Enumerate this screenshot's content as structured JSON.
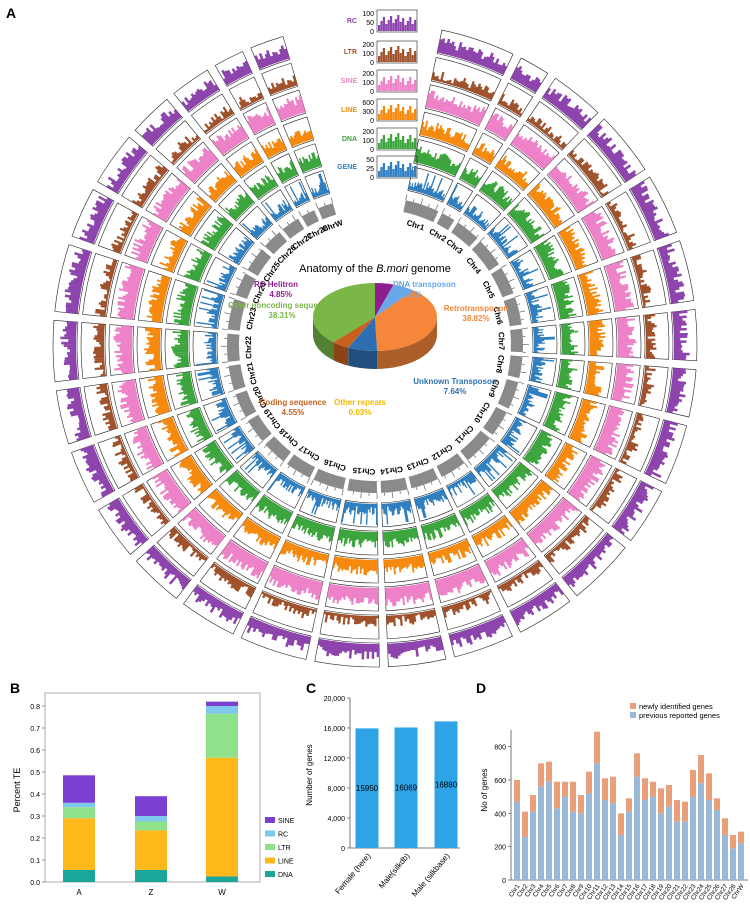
{
  "panel_labels": {
    "a": "A",
    "b": "B",
    "c": "C",
    "d": "D"
  },
  "colors": {
    "RC": "#8e44ad",
    "LTR": "#a0522d",
    "SINE": "#ee82c8",
    "LINE": "#f58a0e",
    "DNA": "#3da53d",
    "GENE": "#2f7fc1",
    "chromosome": "#8a8a8a",
    "b_SINE": "#7b3fd1",
    "b_RC": "#7ec8ee",
    "b_LTR": "#8fe28a",
    "b_LINE": "#ffb81a",
    "b_DNA": "#1aa79a",
    "c_bar": "#2ea3e6",
    "d_new": "#e8a07a",
    "d_prev": "#9ab8d8"
  },
  "ring_legend": [
    {
      "name": "RC",
      "ticks": [
        "100",
        "50",
        "0"
      ]
    },
    {
      "name": "LTR",
      "ticks": [
        "200",
        "100",
        "0"
      ]
    },
    {
      "name": "SINE",
      "ticks": [
        "200",
        "100",
        "0"
      ]
    },
    {
      "name": "LINE",
      "ticks": [
        "600",
        "300",
        "0"
      ]
    },
    {
      "name": "DNA",
      "ticks": [
        "200",
        "100",
        "0"
      ]
    },
    {
      "name": "GENE",
      "ticks": [
        "50",
        "25",
        "0"
      ]
    }
  ],
  "chart_data": [
    {
      "type": "pie",
      "panel": "A",
      "title_prefix": "Anatomy of the ",
      "title_italic": "B.mori",
      "title_suffix": " genome",
      "slices": [
        {
          "label": "RC Helitron",
          "value": 4.85,
          "pct_label": "4.85%",
          "color": "#8e1c8e"
        },
        {
          "label": "DNA transposon",
          "value": 5.8,
          "pct_label": "5.80%",
          "color": "#69a8e8"
        },
        {
          "label": "Retrotransposon",
          "value": 38.82,
          "pct_label": "38.82%",
          "color": "#f5863a"
        },
        {
          "label": "Unknown Transposon",
          "value": 7.64,
          "pct_label": "7.64%",
          "color": "#2e6fb3"
        },
        {
          "label": "Other repeats",
          "value": 0.03,
          "pct_label": "0.03%",
          "color": "#f2c200"
        },
        {
          "label": "Coding sequence",
          "value": 4.55,
          "pct_label": "4.55%",
          "color": "#c8601e"
        },
        {
          "label": "Other noncoding sequences",
          "value": 38.31,
          "pct_label": "38.31%",
          "color": "#7ab648"
        }
      ],
      "chromosomes": [
        {
          "name": "Chr1",
          "len": 22
        },
        {
          "name": "Chr2",
          "len": 9
        },
        {
          "name": "Chr3",
          "len": 16
        },
        {
          "name": "Chr4",
          "len": 19
        },
        {
          "name": "Chr5",
          "len": 18
        },
        {
          "name": "Chr6",
          "len": 18
        },
        {
          "name": "Chr7",
          "len": 15
        },
        {
          "name": "Chr8",
          "len": 14
        },
        {
          "name": "Chr9",
          "len": 18
        },
        {
          "name": "Chr10",
          "len": 17
        },
        {
          "name": "Chr11",
          "len": 20
        },
        {
          "name": "Chr12",
          "len": 17
        },
        {
          "name": "Chr13",
          "len": 18
        },
        {
          "name": "Chr14",
          "len": 17
        },
        {
          "name": "Chr15",
          "len": 19
        },
        {
          "name": "Chr16",
          "len": 20
        },
        {
          "name": "Chr17",
          "len": 17
        },
        {
          "name": "Chr18",
          "len": 16
        },
        {
          "name": "Chr19",
          "len": 16
        },
        {
          "name": "Chr20",
          "len": 16
        },
        {
          "name": "Chr21",
          "len": 16
        },
        {
          "name": "Chr22",
          "len": 18
        },
        {
          "name": "Chr23",
          "len": 20
        },
        {
          "name": "Chr24",
          "len": 15
        },
        {
          "name": "Chr25",
          "len": 16
        },
        {
          "name": "Chr26",
          "len": 13
        },
        {
          "name": "Chr27",
          "len": 12
        },
        {
          "name": "Chr28",
          "len": 9
        },
        {
          "name": "ChrW",
          "len": 10
        }
      ]
    },
    {
      "type": "bar",
      "stacked": true,
      "panel": "B",
      "categories": [
        "A",
        "Z",
        "W"
      ],
      "series": [
        {
          "name": "DNA",
          "values": [
            0.055,
            0.055,
            0.025
          ]
        },
        {
          "name": "LINE",
          "values": [
            0.235,
            0.18,
            0.54
          ]
        },
        {
          "name": "LTR",
          "values": [
            0.05,
            0.04,
            0.2
          ]
        },
        {
          "name": "RC",
          "values": [
            0.02,
            0.025,
            0.035
          ]
        },
        {
          "name": "SINE",
          "values": [
            0.125,
            0.09,
            0.02
          ]
        }
      ],
      "ylabel": "Percent TE",
      "ylim": [
        0,
        0.85
      ],
      "yticks": [
        "0.0",
        "0.1",
        "0.2",
        "0.3",
        "0.4",
        "0.5",
        "0.6",
        "0.7",
        "0.8"
      ],
      "legend_order": [
        "SINE",
        "RC",
        "LTR",
        "LINE",
        "DNA"
      ],
      "legend": "right"
    },
    {
      "type": "bar",
      "panel": "C",
      "categories": [
        "Female (here)",
        "Male(silkdb)",
        "Male (silkbase)"
      ],
      "values": [
        15950,
        16069,
        16880
      ],
      "value_labels": [
        "15950",
        "16069",
        "16880"
      ],
      "ylabel": "Number of genes",
      "ylim": [
        0,
        20000
      ],
      "yticks": [
        "0",
        "4,000",
        "8,000",
        "12,000",
        "16,000",
        "20,000"
      ]
    },
    {
      "type": "bar",
      "stacked": true,
      "panel": "D",
      "categories": [
        "Chr1",
        "Chr2",
        "Chr3",
        "Chr4",
        "Chr5",
        "Chr6",
        "Chr7",
        "Chr8",
        "Chr9",
        "Chr10",
        "Chr11",
        "Chr12",
        "Chr13",
        "Chr14",
        "Chr15",
        "Chr16",
        "Chr17",
        "Chr18",
        "Chr19",
        "Chr20",
        "Chr21",
        "Chr22",
        "Chr23",
        "Chr24",
        "Chr25",
        "Chr26",
        "Chr27",
        "Chr28",
        "ChrW"
      ],
      "series": [
        {
          "name": "previous reported genes",
          "values": [
            470,
            260,
            410,
            560,
            590,
            430,
            500,
            410,
            400,
            520,
            700,
            480,
            460,
            270,
            410,
            620,
            480,
            500,
            400,
            440,
            350,
            350,
            500,
            580,
            480,
            420,
            270,
            190,
            220
          ]
        },
        {
          "name": "newly identified genes",
          "values": [
            130,
            150,
            100,
            140,
            120,
            160,
            90,
            180,
            110,
            130,
            190,
            130,
            160,
            130,
            80,
            140,
            130,
            90,
            150,
            130,
            130,
            120,
            160,
            170,
            160,
            70,
            100,
            80,
            70
          ]
        }
      ],
      "ylabel": "No of genes",
      "ylim": [
        0,
        900
      ],
      "yticks": [
        "0",
        "200",
        "400",
        "600",
        "800"
      ],
      "legend_order": [
        "newly identified genes",
        "previous reported genes"
      ],
      "legend": "top-right"
    }
  ]
}
